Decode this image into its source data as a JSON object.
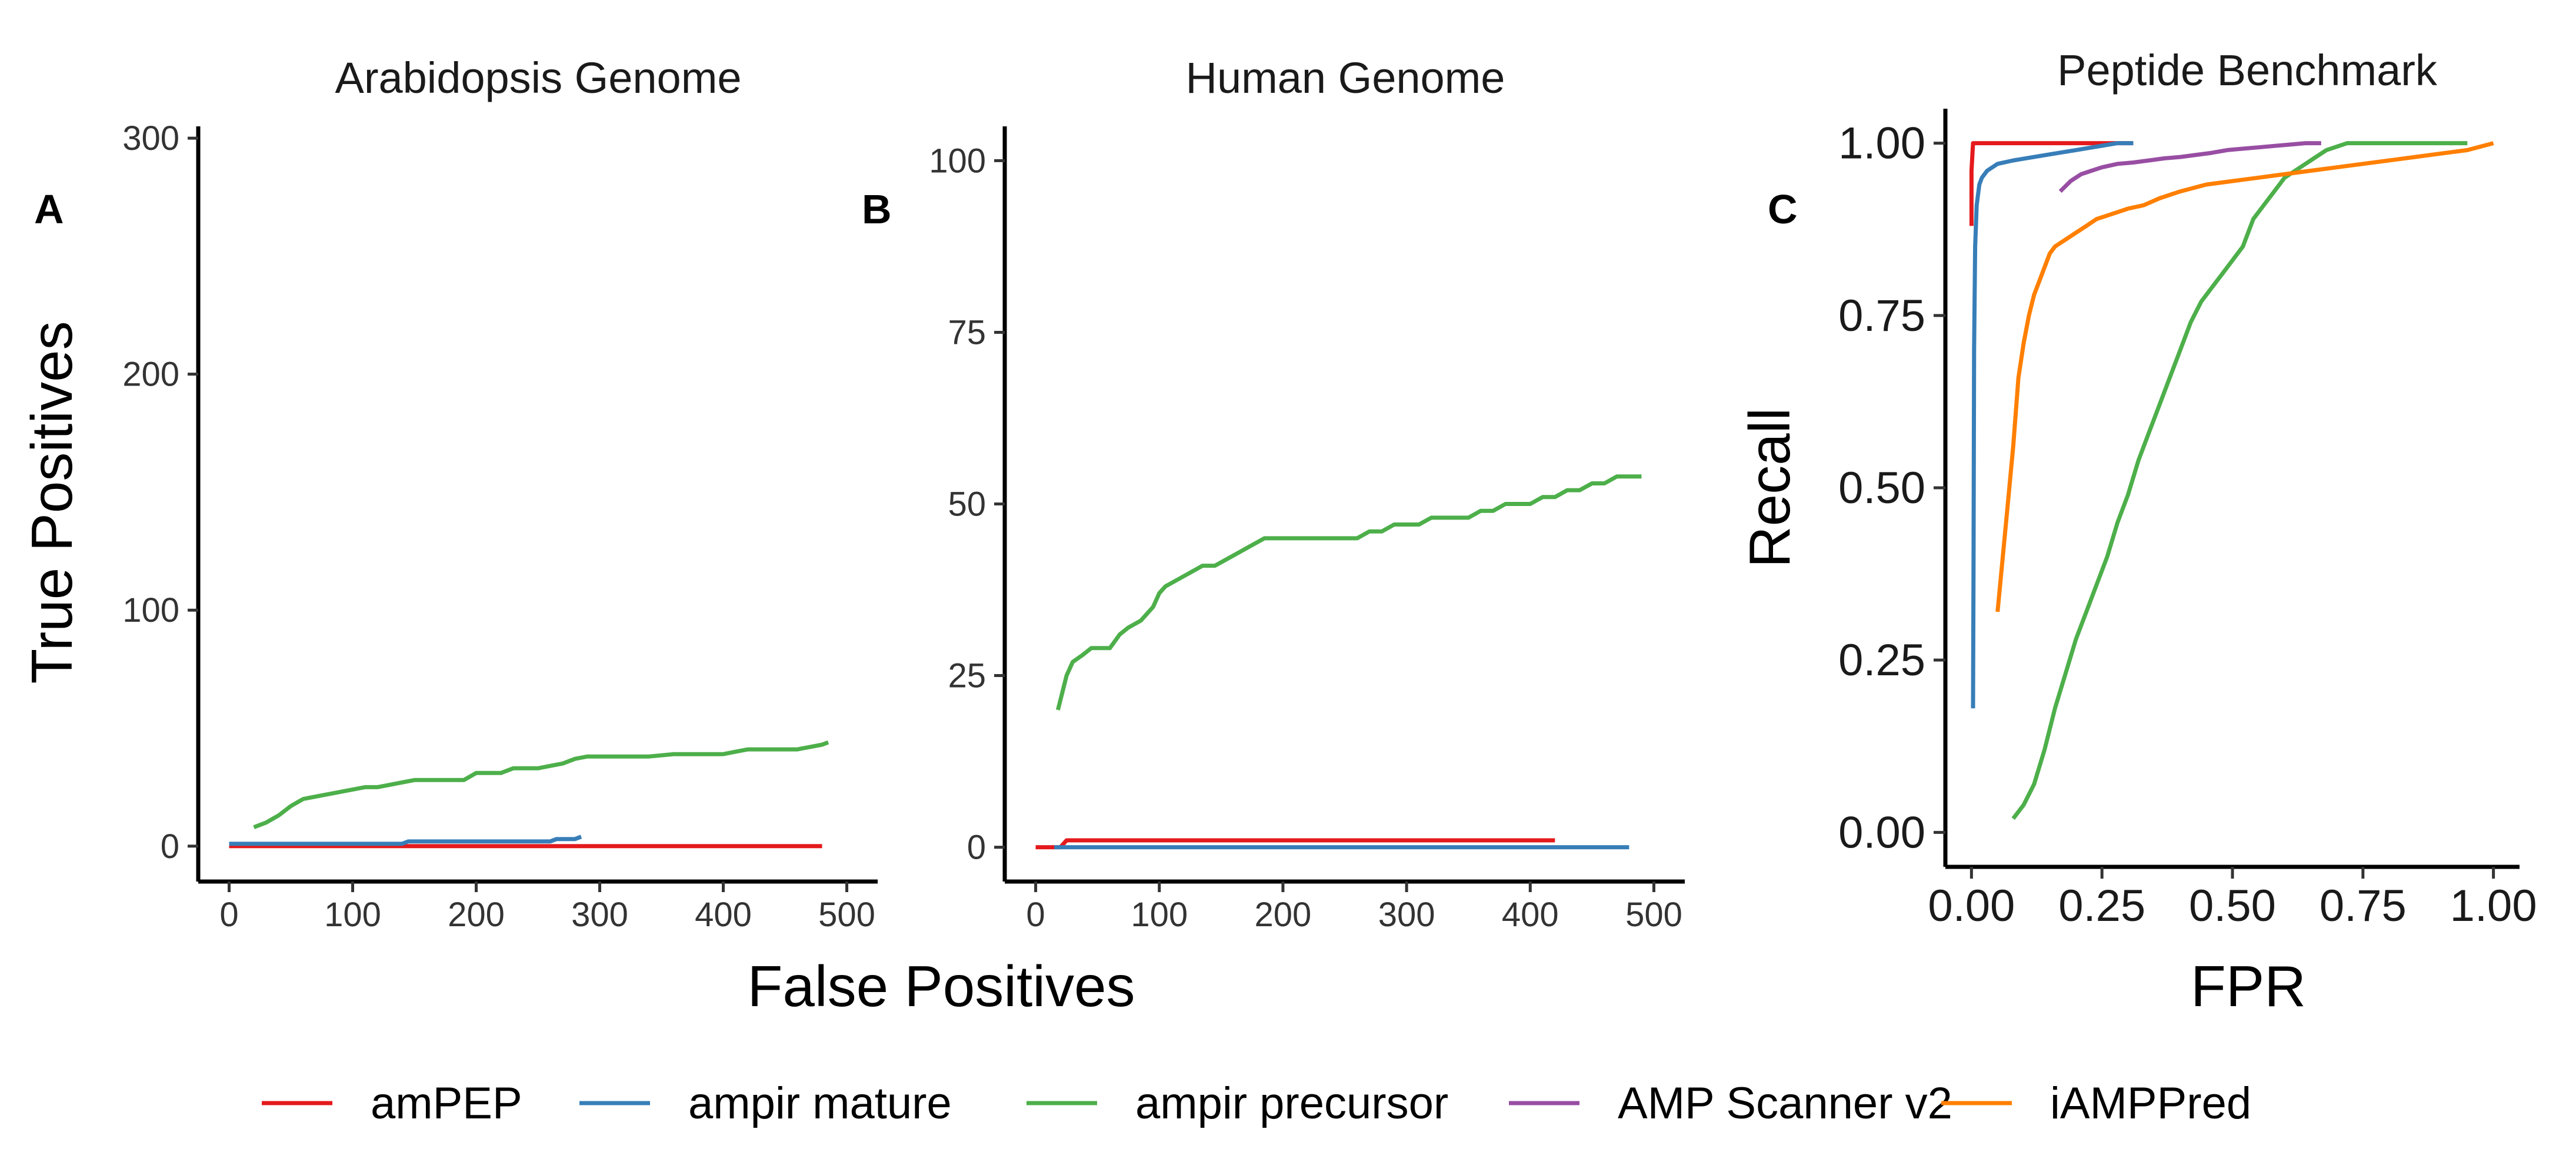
{
  "colors": {
    "amPEP": "#e41a1c",
    "ampir mature": "#377eb8",
    "ampir precursor": "#4daf4a",
    "AMP Scanner v2": "#984ea3",
    "iAMPPred": "#ff7f00"
  },
  "shared_labels": {
    "xlabel": "False Positives",
    "ylabel": "True Positives"
  },
  "legend": {
    "position": "bottom",
    "items": [
      "amPEP",
      "ampir mature",
      "ampir precursor",
      "AMP Scanner v2",
      "iAMPPred"
    ]
  },
  "chart_data": [
    {
      "panel": "A",
      "type": "line",
      "title": "Arabidopsis Genome",
      "xlim": [
        -25,
        525
      ],
      "ylim": [
        -15,
        305
      ],
      "xticks": [
        "0",
        "100",
        "200",
        "300",
        "400",
        "500"
      ],
      "yticks": [
        "0",
        "100",
        "200",
        "300"
      ],
      "grid": false,
      "series": [
        {
          "name": "amPEP",
          "x": [
            0,
            480
          ],
          "y": [
            0,
            0
          ]
        },
        {
          "name": "ampir mature",
          "x": [
            0,
            140,
            145,
            260,
            265,
            280,
            285
          ],
          "y": [
            1,
            1,
            2,
            2,
            3,
            3,
            4
          ]
        },
        {
          "name": "ampir precursor",
          "x": [
            20,
            30,
            40,
            50,
            60,
            70,
            80,
            90,
            100,
            110,
            120,
            130,
            140,
            150,
            170,
            190,
            200,
            220,
            230,
            250,
            260,
            270,
            280,
            290,
            300,
            320,
            340,
            360,
            380,
            400,
            410,
            420,
            440,
            460,
            480,
            485
          ],
          "y": [
            8,
            10,
            13,
            17,
            20,
            21,
            22,
            23,
            24,
            25,
            25,
            26,
            27,
            28,
            28,
            28,
            31,
            31,
            33,
            33,
            34,
            35,
            37,
            38,
            38,
            38,
            38,
            39,
            39,
            39,
            40,
            41,
            41,
            41,
            43,
            44
          ]
        }
      ]
    },
    {
      "panel": "B",
      "type": "line",
      "title": "Human Genome",
      "xlim": [
        -25,
        525
      ],
      "ylim": [
        -5,
        105
      ],
      "xticks": [
        "0",
        "100",
        "200",
        "300",
        "400",
        "500"
      ],
      "yticks": [
        "0",
        "25",
        "50",
        "75",
        "100"
      ],
      "grid": false,
      "series": [
        {
          "name": "amPEP",
          "x": [
            0,
            20,
            25,
            420
          ],
          "y": [
            0,
            0,
            1,
            1
          ]
        },
        {
          "name": "ampir mature",
          "x": [
            15,
            480
          ],
          "y": [
            0,
            0
          ]
        },
        {
          "name": "ampir precursor",
          "x": [
            18,
            25,
            30,
            38,
            45,
            60,
            68,
            75,
            85,
            95,
            100,
            105,
            115,
            125,
            135,
            145,
            155,
            165,
            175,
            185,
            200,
            220,
            240,
            260,
            270,
            280,
            290,
            300,
            310,
            320,
            330,
            340,
            350,
            360,
            370,
            380,
            390,
            400,
            410,
            420,
            430,
            440,
            450,
            460,
            470,
            480,
            490
          ],
          "y": [
            20,
            25,
            27,
            28,
            29,
            29,
            31,
            32,
            33,
            35,
            37,
            38,
            39,
            40,
            41,
            41,
            42,
            43,
            44,
            45,
            45,
            45,
            45,
            45,
            46,
            46,
            47,
            47,
            47,
            48,
            48,
            48,
            48,
            49,
            49,
            50,
            50,
            50,
            51,
            51,
            52,
            52,
            53,
            53,
            54,
            54,
            54
          ]
        }
      ]
    },
    {
      "panel": "C",
      "type": "line",
      "title": "Peptide Benchmark",
      "xlabel": "FPR",
      "ylabel": "Recall",
      "xlim": [
        -0.05,
        1.05
      ],
      "ylim": [
        -0.05,
        1.05
      ],
      "xticks": [
        "0.00",
        "0.25",
        "0.50",
        "0.75",
        "1.00"
      ],
      "yticks": [
        "0.00",
        "0.25",
        "0.50",
        "0.75",
        "1.00"
      ],
      "grid": false,
      "series": [
        {
          "name": "amPEP",
          "x": [
            0.0,
            0.0,
            0.003,
            0.01,
            0.05,
            0.1,
            0.2,
            0.31
          ],
          "y": [
            0.88,
            0.96,
            1.0,
            1.0,
            1.0,
            1.0,
            1.0,
            1.0
          ]
        },
        {
          "name": "ampir mature",
          "x": [
            0.003,
            0.004,
            0.005,
            0.007,
            0.01,
            0.015,
            0.02,
            0.03,
            0.05,
            0.08,
            0.12,
            0.16,
            0.2,
            0.24,
            0.28,
            0.31
          ],
          "y": [
            0.18,
            0.4,
            0.7,
            0.85,
            0.91,
            0.94,
            0.95,
            0.96,
            0.97,
            0.975,
            0.98,
            0.985,
            0.99,
            0.995,
            1.0,
            1.0
          ]
        },
        {
          "name": "ampir precursor",
          "x": [
            0.08,
            0.1,
            0.12,
            0.14,
            0.16,
            0.18,
            0.2,
            0.22,
            0.24,
            0.26,
            0.28,
            0.3,
            0.32,
            0.34,
            0.36,
            0.38,
            0.4,
            0.42,
            0.44,
            0.46,
            0.48,
            0.5,
            0.52,
            0.54,
            0.56,
            0.58,
            0.6,
            0.62,
            0.64,
            0.66,
            0.68,
            0.7,
            0.72,
            0.74,
            0.78,
            0.82,
            0.86,
            0.9,
            0.95
          ],
          "y": [
            0.02,
            0.04,
            0.07,
            0.12,
            0.18,
            0.23,
            0.28,
            0.32,
            0.36,
            0.4,
            0.45,
            0.49,
            0.54,
            0.58,
            0.62,
            0.66,
            0.7,
            0.74,
            0.77,
            0.79,
            0.81,
            0.83,
            0.85,
            0.89,
            0.91,
            0.93,
            0.95,
            0.96,
            0.97,
            0.98,
            0.99,
            0.995,
            1.0,
            1.0,
            1.0,
            1.0,
            1.0,
            1.0,
            1.0
          ]
        },
        {
          "name": "AMP Scanner v2",
          "x": [
            0.17,
            0.19,
            0.21,
            0.23,
            0.25,
            0.28,
            0.31,
            0.34,
            0.37,
            0.4,
            0.43,
            0.46,
            0.49,
            0.52,
            0.55,
            0.58,
            0.61,
            0.64,
            0.67
          ],
          "y": [
            0.93,
            0.945,
            0.955,
            0.96,
            0.965,
            0.97,
            0.972,
            0.975,
            0.978,
            0.98,
            0.983,
            0.986,
            0.99,
            0.992,
            0.994,
            0.996,
            0.998,
            1.0,
            1.0
          ]
        },
        {
          "name": "iAMPPred",
          "x": [
            0.05,
            0.06,
            0.07,
            0.08,
            0.09,
            0.1,
            0.11,
            0.12,
            0.13,
            0.14,
            0.15,
            0.16,
            0.18,
            0.2,
            0.22,
            0.24,
            0.26,
            0.28,
            0.3,
            0.33,
            0.36,
            0.4,
            0.45,
            0.5,
            0.55,
            0.6,
            0.65,
            0.7,
            0.75,
            0.8,
            0.85,
            0.9,
            0.95,
            1.0
          ],
          "y": [
            0.32,
            0.4,
            0.48,
            0.56,
            0.66,
            0.71,
            0.75,
            0.78,
            0.8,
            0.82,
            0.84,
            0.85,
            0.86,
            0.87,
            0.88,
            0.89,
            0.895,
            0.9,
            0.905,
            0.91,
            0.92,
            0.93,
            0.94,
            0.945,
            0.95,
            0.955,
            0.96,
            0.965,
            0.97,
            0.975,
            0.98,
            0.985,
            0.99,
            1.0
          ]
        }
      ]
    }
  ]
}
